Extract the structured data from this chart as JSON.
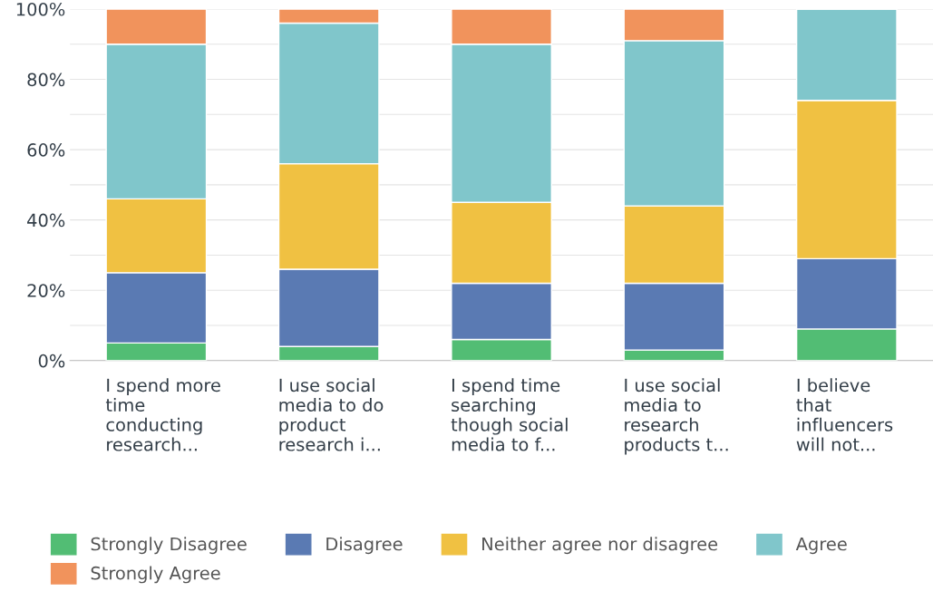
{
  "chart_data": {
    "type": "bar",
    "stacked": true,
    "categories": [
      "I spend more\ntime\nconducting\nresearch...",
      "I use social\nmedia to do\nproduct\nresearch i...",
      "I spend time\nsearching\nthough social\nmedia to f...",
      "I use social\nmedia to\nresearch\nproducts t...",
      "I believe\nthat\ninfluencers\nwill not..."
    ],
    "series": [
      {
        "name": "Strongly Disagree",
        "color": "#52bd74",
        "values": [
          5,
          4,
          6,
          3,
          9
        ]
      },
      {
        "name": "Disagree",
        "color": "#5a7ab3",
        "values": [
          20,
          22,
          16,
          19,
          20
        ]
      },
      {
        "name": "Neither agree nor disagree",
        "color": "#f0c142",
        "values": [
          21,
          30,
          23,
          22,
          45
        ]
      },
      {
        "name": "Agree",
        "color": "#80c6cb",
        "values": [
          44,
          40,
          45,
          47,
          26
        ]
      },
      {
        "name": "Strongly Agree",
        "color": "#f1935c",
        "values": [
          10,
          4,
          10,
          9,
          null
        ]
      }
    ],
    "ylim": [
      0,
      100
    ],
    "yticks": [
      {
        "value": 0,
        "label": "0%"
      },
      {
        "value": 10,
        "label": null
      },
      {
        "value": 20,
        "label": "20%"
      },
      {
        "value": 30,
        "label": null
      },
      {
        "value": 40,
        "label": "40%"
      },
      {
        "value": 50,
        "label": null
      },
      {
        "value": 60,
        "label": "60%"
      },
      {
        "value": 70,
        "label": null
      },
      {
        "value": 80,
        "label": "80%"
      },
      {
        "value": 90,
        "label": null
      },
      {
        "value": 100,
        "label": "100%"
      }
    ],
    "grid": "y",
    "legend": "bottom"
  }
}
